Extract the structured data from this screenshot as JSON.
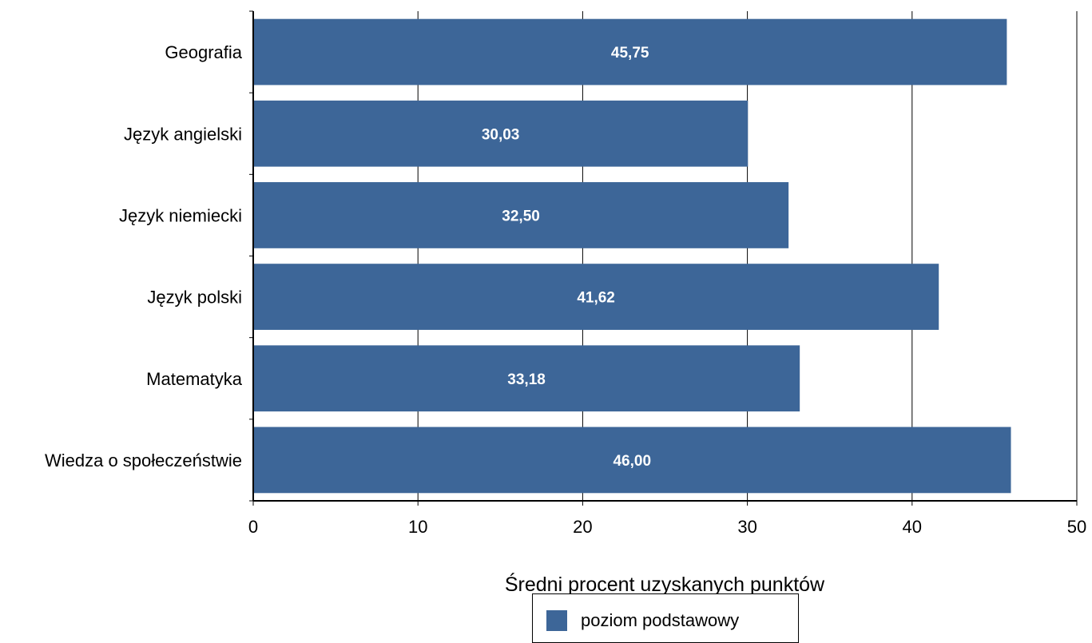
{
  "chart_data": {
    "type": "bar",
    "orientation": "horizontal",
    "categories": [
      "Geografia",
      "Język angielski",
      "Język niemiecki",
      "Język polski",
      "Matematyka",
      "Wiedza o społeczeństwie"
    ],
    "series": [
      {
        "name": "poziom podstawowy",
        "values": [
          45.75,
          30.03,
          32.5,
          41.62,
          33.18,
          46.0
        ],
        "data_labels": [
          "45,75",
          "30,03",
          "32,50",
          "41,62",
          "33,18",
          "46,00"
        ]
      }
    ],
    "title": "",
    "xlabel": "Średni procent uzyskanych punktów",
    "ylabel": "",
    "xlim": [
      0,
      50
    ],
    "xticks": [
      0,
      10,
      20,
      30,
      40,
      50
    ],
    "grid": "vertical",
    "legend": "bottom-center",
    "colors": {
      "bar": "#3d6698",
      "grid": "#000000",
      "data_label": "#ffffff"
    }
  }
}
